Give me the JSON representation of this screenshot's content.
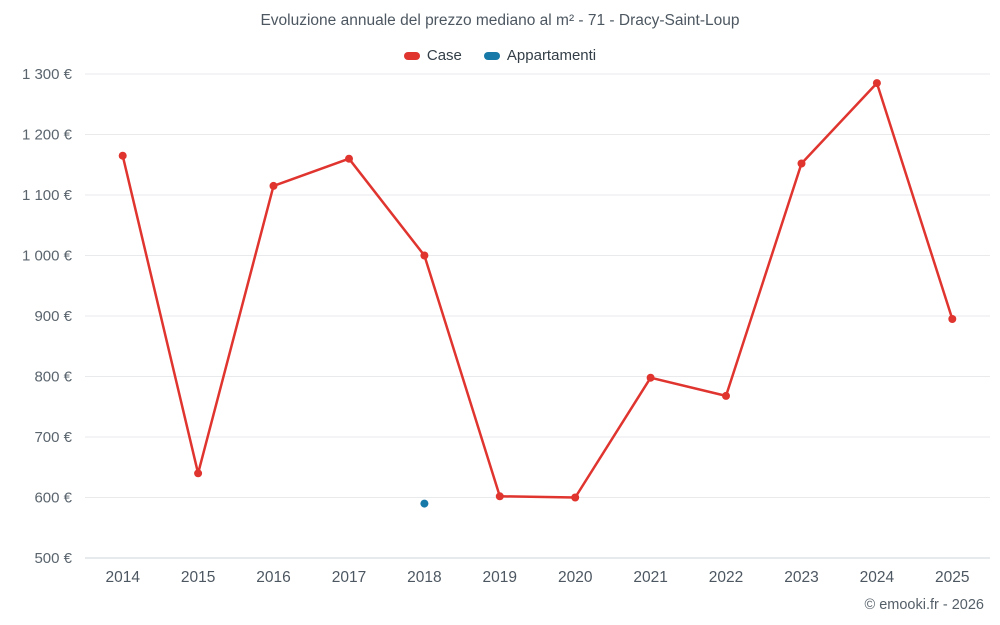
{
  "title": "Evoluzione annuale del prezzo mediano al m² - 71 - Dracy-Saint-Loup",
  "watermark": "© emooki.fr - 2026",
  "colors": {
    "case": "#e0342f",
    "appartamenti": "#1779a8",
    "grid": "#e8eaec",
    "axis": "#cfd4d9",
    "text": "#4d5761"
  },
  "legend": {
    "items": [
      {
        "label": "Case",
        "color": "#e0342f"
      },
      {
        "label": "Appartamenti",
        "color": "#1779a8"
      }
    ]
  },
  "chart_data": {
    "type": "line",
    "title": "Evoluzione annuale del prezzo mediano al m² - 71 - Dracy-Saint-Loup",
    "xlabel": "",
    "ylabel": "",
    "x": [
      2014,
      2015,
      2016,
      2017,
      2018,
      2019,
      2020,
      2021,
      2022,
      2023,
      2024,
      2025
    ],
    "series": [
      {
        "name": "Case",
        "color": "#e0342f",
        "values": [
          1165,
          640,
          1115,
          1160,
          1000,
          602,
          600,
          798,
          768,
          1152,
          1285,
          895
        ]
      },
      {
        "name": "Appartamenti",
        "color": "#1779a8",
        "values": [
          null,
          null,
          null,
          null,
          590,
          null,
          null,
          null,
          null,
          null,
          null,
          null
        ]
      }
    ],
    "ylim": [
      500,
      1300
    ],
    "ytick_step": 100,
    "y_suffix": " €",
    "grid": true,
    "legend_position": "top"
  }
}
